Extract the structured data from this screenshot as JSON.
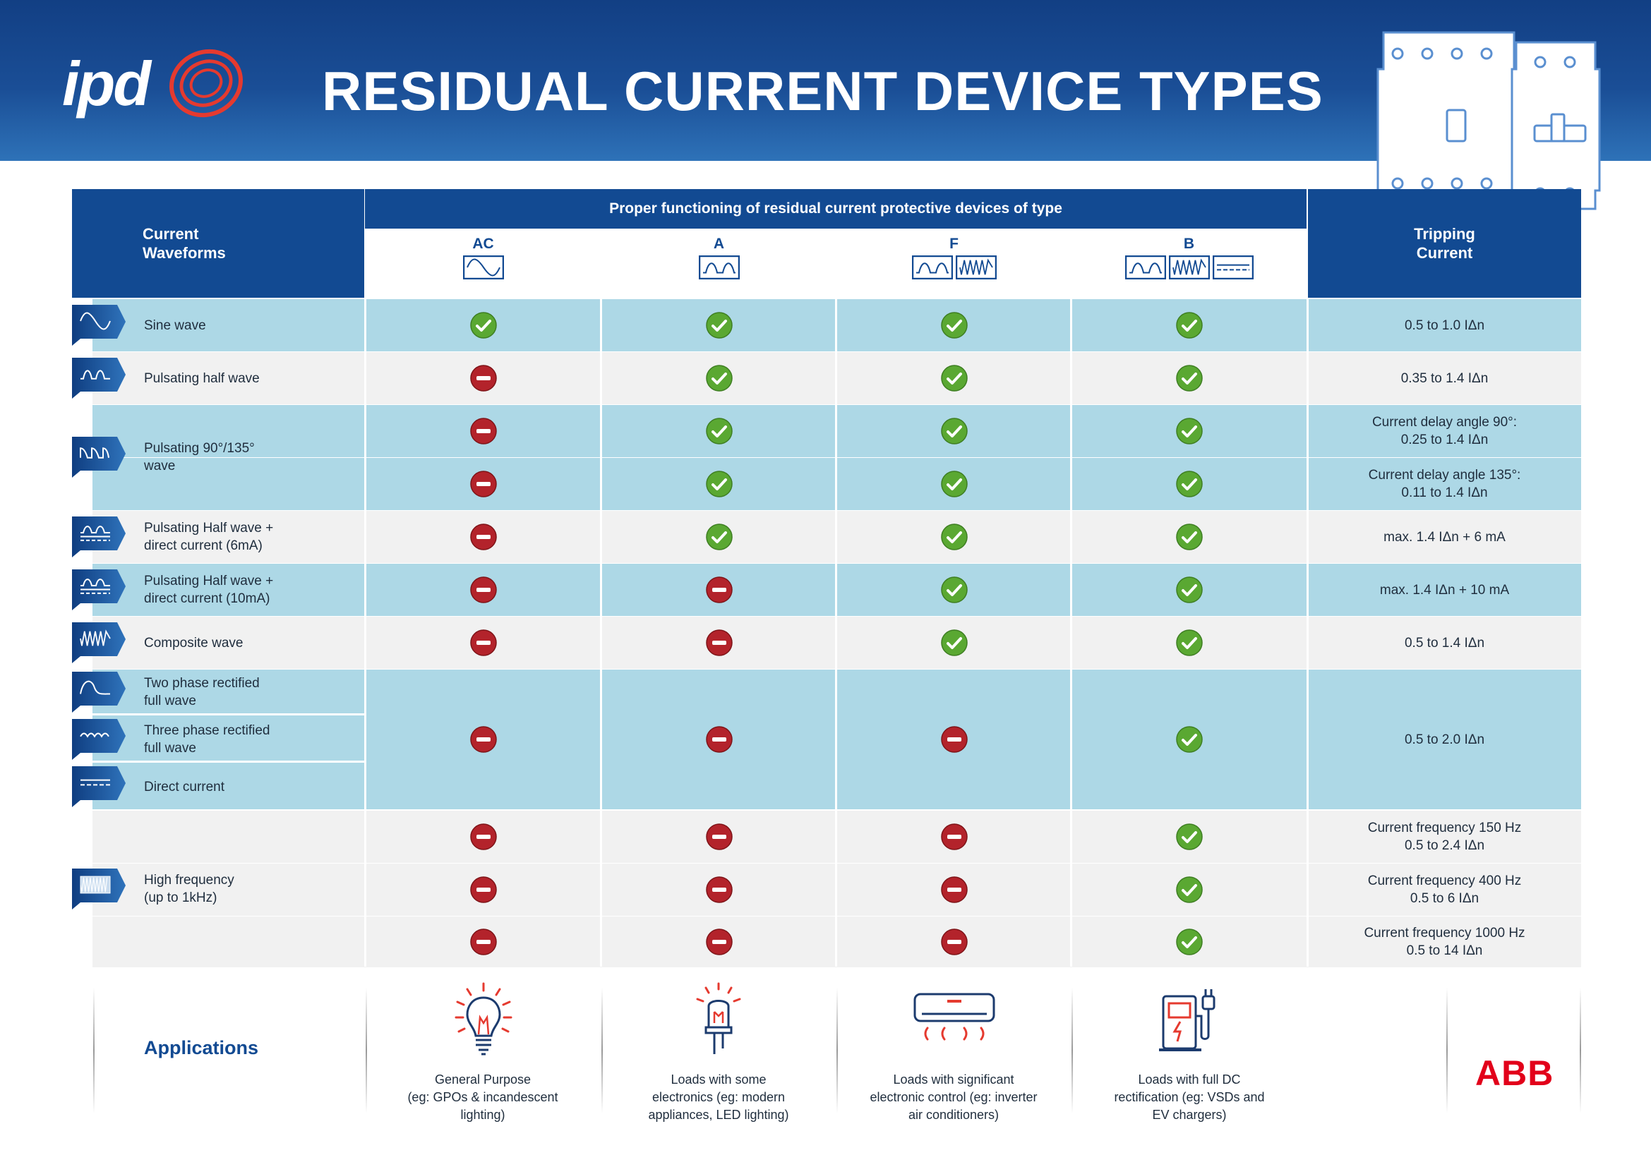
{
  "brand": {
    "logo_text": "ipd",
    "partner_logo": "ABB"
  },
  "title": "RESIDUAL CURRENT DEVICE TYPES",
  "header": {
    "waveforms": "Current Waveforms",
    "proper_functioning": "Proper functioning of residual current protective devices of type",
    "tripping": "Tripping Current",
    "types": [
      {
        "label": "AC",
        "icons": [
          "sine-wave-icon"
        ]
      },
      {
        "label": "A",
        "icons": [
          "pulsating-wave-icon"
        ]
      },
      {
        "label": "F",
        "icons": [
          "pulsating-wave-icon",
          "composite-wave-icon"
        ]
      },
      {
        "label": "B",
        "icons": [
          "pulsating-wave-icon",
          "composite-wave-icon",
          "direct-current-icon"
        ]
      }
    ]
  },
  "waveforms": [
    {
      "label": "Sine wave",
      "icon": "sine-wave-icon"
    },
    {
      "label": "Pulsating half wave",
      "icon": "pulsating-half-wave-icon"
    },
    {
      "label": "Pulsating 90°/135°\nwave",
      "icon": "pulsating-phase-angle-icon"
    },
    {
      "label": "Pulsating Half wave +\ndirect current (6mA)",
      "icon": "half-wave-plus-dc-icon"
    },
    {
      "label": "Pulsating Half wave +\ndirect current (10mA)",
      "icon": "half-wave-plus-dc-icon"
    },
    {
      "label": "Composite wave",
      "icon": "composite-wave-icon"
    },
    {
      "label": "Two phase rectified\nfull wave",
      "icon": "two-phase-rectified-icon"
    },
    {
      "label": "Three phase rectified\nfull wave",
      "icon": "three-phase-rectified-icon"
    },
    {
      "label": "Direct current",
      "icon": "direct-current-icon"
    },
    {
      "label": "High frequency\n(up to 1kHz)",
      "icon": "high-frequency-icon"
    }
  ],
  "rows": [
    {
      "marks": [
        "ok",
        "ok",
        "ok",
        "ok"
      ],
      "tripping": "0.5 to 1.0 IΔn"
    },
    {
      "marks": [
        "no",
        "ok",
        "ok",
        "ok"
      ],
      "tripping": "0.35 to 1.4 IΔn"
    },
    {
      "marks": [
        "no",
        "ok",
        "ok",
        "ok"
      ],
      "tripping": "Current delay angle 90°:\n0.25 to 1.4 IΔn"
    },
    {
      "marks": [
        "no",
        "ok",
        "ok",
        "ok"
      ],
      "tripping": "Current delay angle 135°:\n0.11 to 1.4 IΔn"
    },
    {
      "marks": [
        "no",
        "ok",
        "ok",
        "ok"
      ],
      "tripping": "max. 1.4 IΔn + 6 mA"
    },
    {
      "marks": [
        "no",
        "no",
        "ok",
        "ok"
      ],
      "tripping": "max. 1.4 IΔn + 10 mA"
    },
    {
      "marks": [
        "no",
        "no",
        "ok",
        "ok"
      ],
      "tripping": "0.5 to 1.4 IΔn"
    },
    {
      "marks": [
        "no",
        "no",
        "no",
        "ok"
      ],
      "tripping": "0.5 to 2.0 IΔn"
    },
    {
      "marks": [
        "no",
        "no",
        "no",
        "ok"
      ],
      "tripping": "Current frequency 150 Hz\n0.5 to 2.4 IΔn"
    },
    {
      "marks": [
        "no",
        "no",
        "no",
        "ok"
      ],
      "tripping": "Current frequency 400 Hz\n0.5 to 6 IΔn"
    },
    {
      "marks": [
        "no",
        "no",
        "no",
        "ok"
      ],
      "tripping": "Current frequency 1000 Hz\n0.5 to 14 IΔn"
    }
  ],
  "applications": {
    "label": "Applications",
    "items": [
      {
        "icon": "light-bulb-icon",
        "text": "General Purpose\n(eg: GPOs & incandescent\nlighting)"
      },
      {
        "icon": "led-icon",
        "text": "Loads with some\nelectronics (eg: modern\nappliances, LED lighting)"
      },
      {
        "icon": "air-conditioner-icon",
        "text": "Loads with significant\nelectronic control (eg: inverter\nair conditioners)"
      },
      {
        "icon": "ev-charger-icon",
        "text": "Loads with full DC\nrectification (eg: VSDs and\nEV chargers)"
      }
    ]
  },
  "colors": {
    "header": "#124a92",
    "row_blue": "#add8e6",
    "row_grey": "#f1f1f1",
    "ok": "#5aa832",
    "no": "#b3232b",
    "brand_red": "#e2001a"
  }
}
